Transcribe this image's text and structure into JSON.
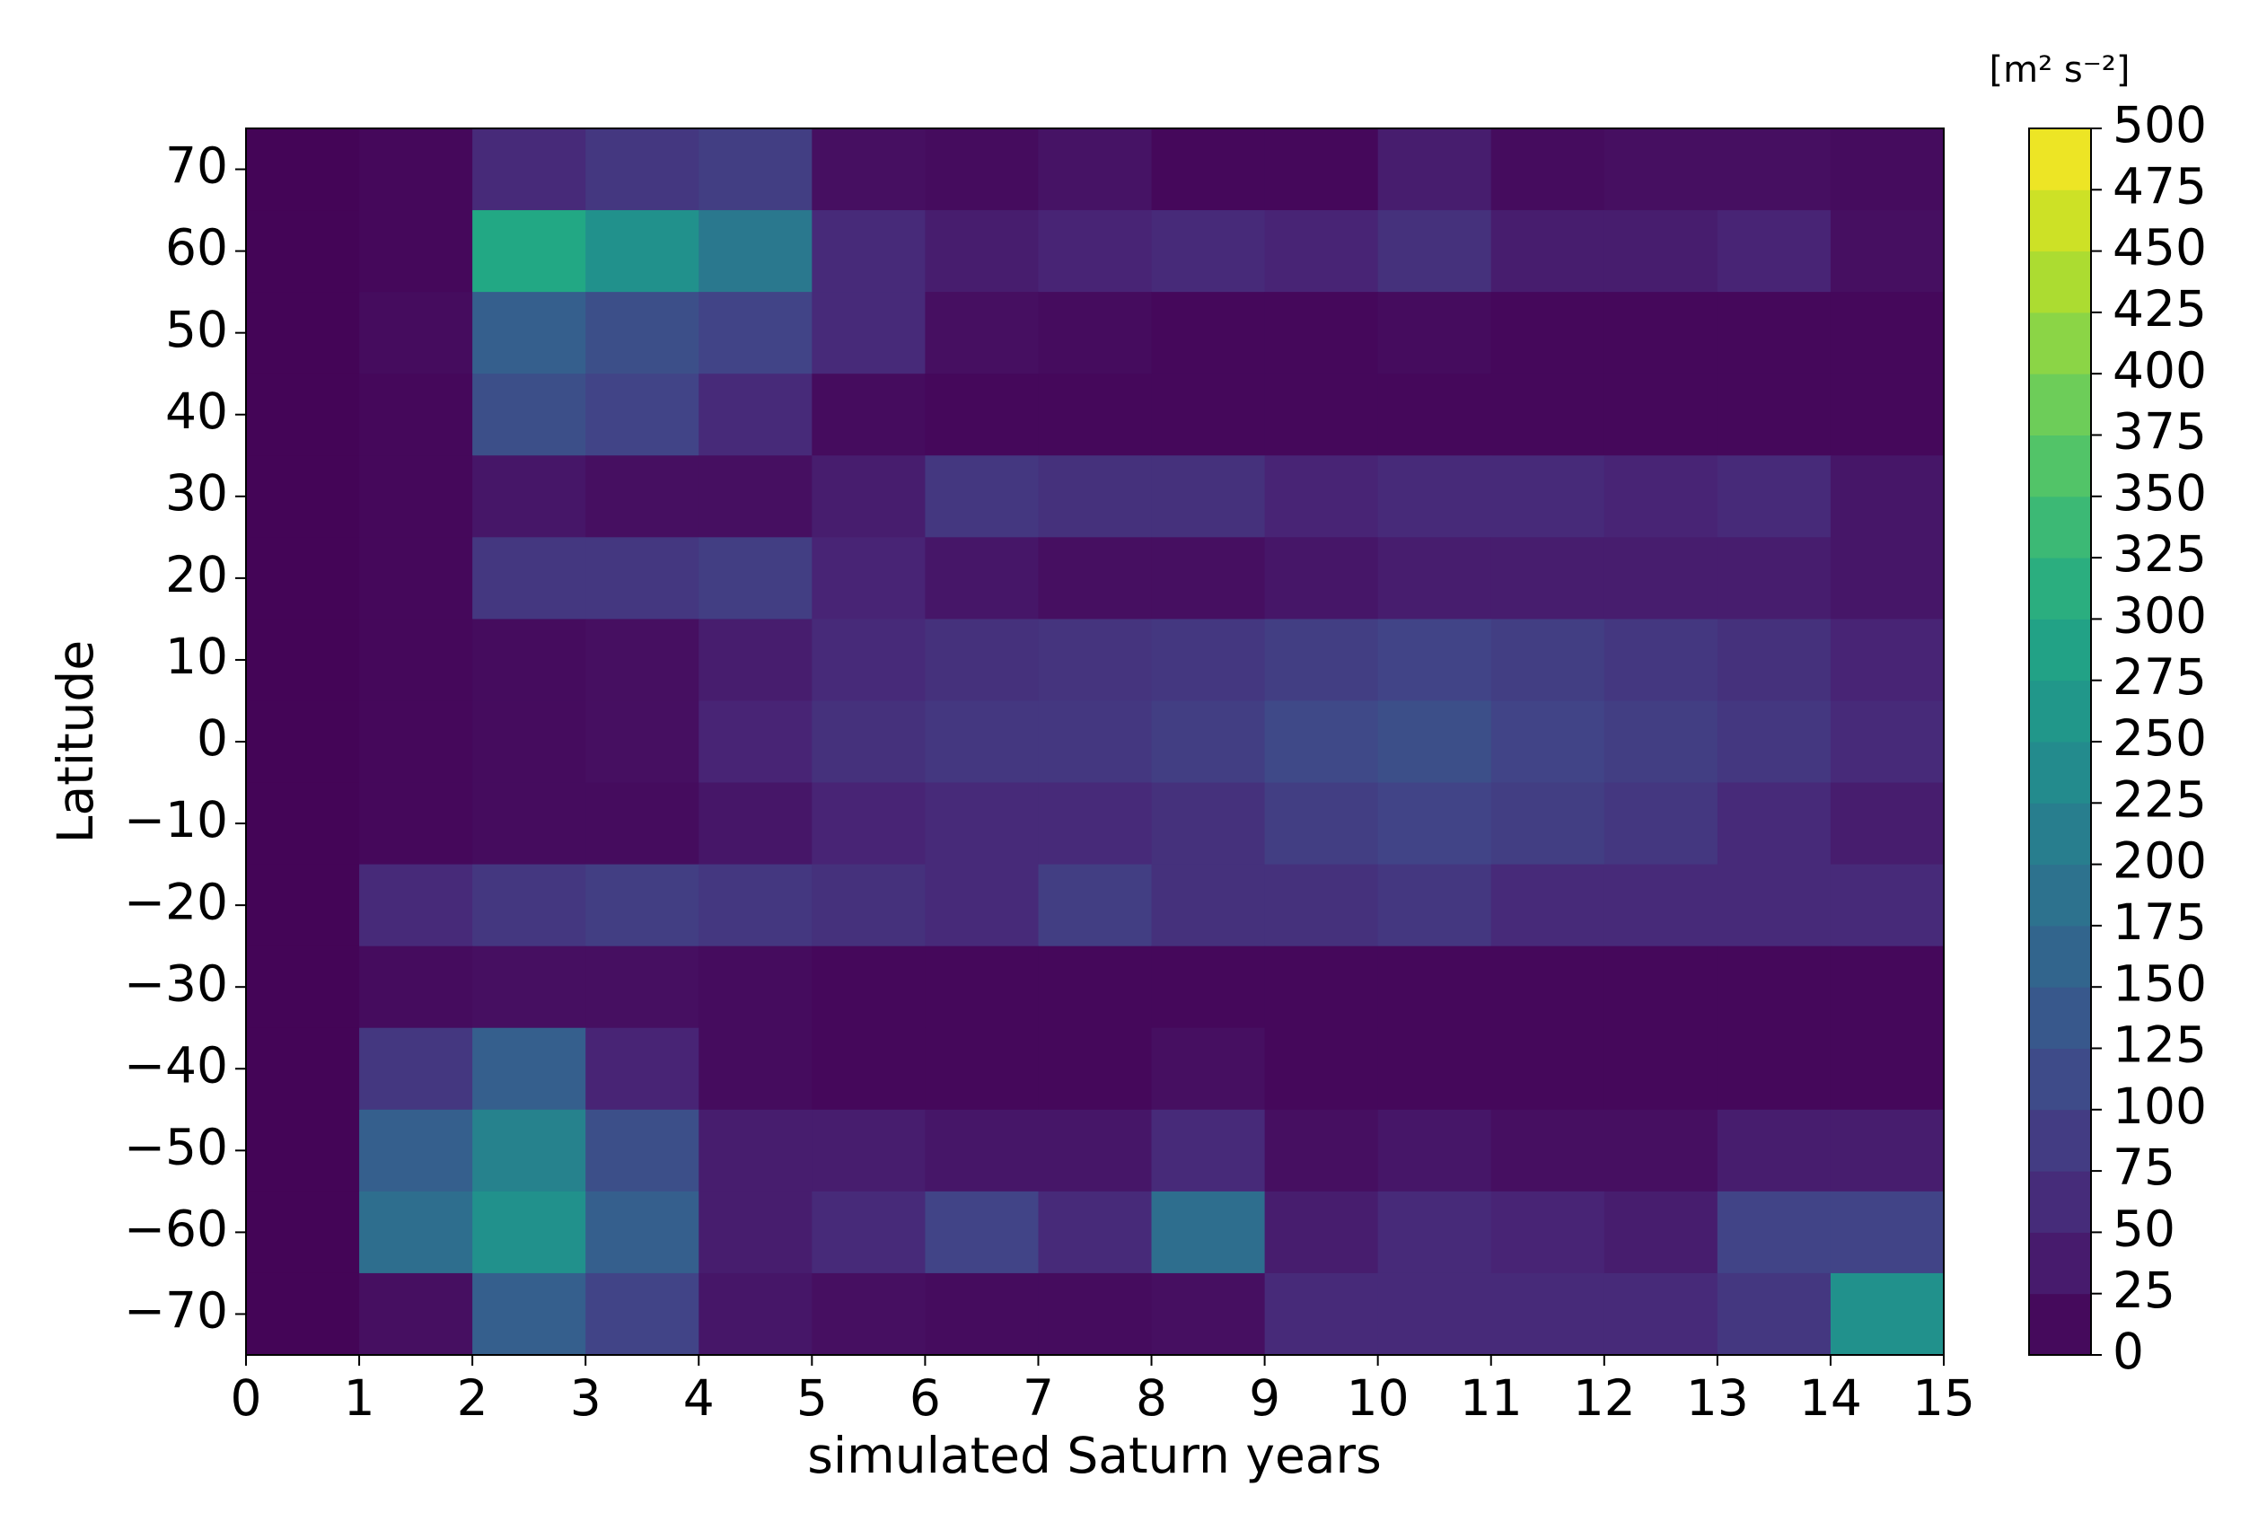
{
  "chart_data": {
    "type": "heatmap",
    "xlabel": "simulated Saturn years",
    "ylabel": "Latitude",
    "colormap": "viridis",
    "x": [
      0.5,
      1.5,
      2.5,
      3.5,
      4.5,
      5.5,
      6.5,
      7.5,
      8.5,
      9.5,
      10.5,
      11.5,
      12.5,
      13.5,
      14.5
    ],
    "y": [
      70,
      60,
      50,
      40,
      30,
      20,
      10,
      0,
      -10,
      -20,
      -30,
      -40,
      -50,
      -60,
      -70
    ],
    "z": [
      [
        5,
        10,
        60,
        80,
        90,
        20,
        15,
        25,
        10,
        10,
        40,
        15,
        20,
        20,
        15
      ],
      [
        5,
        10,
        300,
        250,
        200,
        60,
        40,
        50,
        60,
        50,
        70,
        40,
        40,
        50,
        20
      ],
      [
        5,
        15,
        150,
        120,
        100,
        60,
        20,
        15,
        10,
        10,
        15,
        10,
        10,
        10,
        10
      ],
      [
        5,
        10,
        120,
        100,
        60,
        15,
        10,
        10,
        10,
        10,
        10,
        10,
        10,
        10,
        10
      ],
      [
        5,
        10,
        30,
        20,
        20,
        40,
        80,
        70,
        70,
        50,
        60,
        60,
        50,
        60,
        30
      ],
      [
        5,
        10,
        80,
        80,
        90,
        50,
        30,
        20,
        20,
        30,
        40,
        40,
        40,
        40,
        30
      ],
      [
        5,
        10,
        15,
        20,
        40,
        60,
        70,
        75,
        80,
        90,
        100,
        90,
        80,
        70,
        50
      ],
      [
        5,
        10,
        15,
        20,
        50,
        70,
        80,
        80,
        90,
        110,
        120,
        100,
        90,
        80,
        60
      ],
      [
        5,
        10,
        15,
        15,
        30,
        50,
        60,
        60,
        70,
        90,
        100,
        90,
        80,
        60,
        40
      ],
      [
        5,
        60,
        80,
        90,
        80,
        70,
        60,
        90,
        70,
        70,
        80,
        60,
        60,
        60,
        60
      ],
      [
        5,
        15,
        20,
        20,
        15,
        10,
        10,
        10,
        10,
        10,
        10,
        10,
        10,
        10,
        10
      ],
      [
        5,
        80,
        150,
        50,
        15,
        10,
        10,
        10,
        20,
        10,
        10,
        10,
        10,
        10,
        10
      ],
      [
        5,
        150,
        220,
        120,
        40,
        40,
        30,
        30,
        60,
        20,
        30,
        20,
        20,
        40,
        40
      ],
      [
        5,
        180,
        250,
        150,
        40,
        60,
        100,
        60,
        180,
        40,
        60,
        50,
        40,
        100,
        100
      ],
      [
        5,
        20,
        150,
        100,
        30,
        20,
        15,
        15,
        20,
        60,
        60,
        60,
        60,
        80,
        250
      ]
    ],
    "xlim": [
      0,
      15
    ],
    "ylim": [
      -75,
      75
    ],
    "xticks": [
      0,
      1,
      2,
      3,
      4,
      5,
      6,
      7,
      8,
      9,
      10,
      11,
      12,
      13,
      14,
      15
    ],
    "yticks": [
      {
        "value": -70,
        "label": "−70"
      },
      {
        "value": -60,
        "label": "−60"
      },
      {
        "value": -50,
        "label": "−50"
      },
      {
        "value": -40,
        "label": "−40"
      },
      {
        "value": -30,
        "label": "−30"
      },
      {
        "value": -20,
        "label": "−20"
      },
      {
        "value": -10,
        "label": "−10"
      },
      0,
      10,
      20,
      30,
      40,
      50,
      60,
      70
    ],
    "colorbar": {
      "label": "[m² s⁻²]",
      "lim": [
        0,
        500
      ],
      "ticks": [
        0,
        25,
        50,
        75,
        100,
        125,
        150,
        175,
        200,
        225,
        250,
        275,
        300,
        325,
        350,
        375,
        400,
        425,
        450,
        475,
        500
      ]
    }
  }
}
